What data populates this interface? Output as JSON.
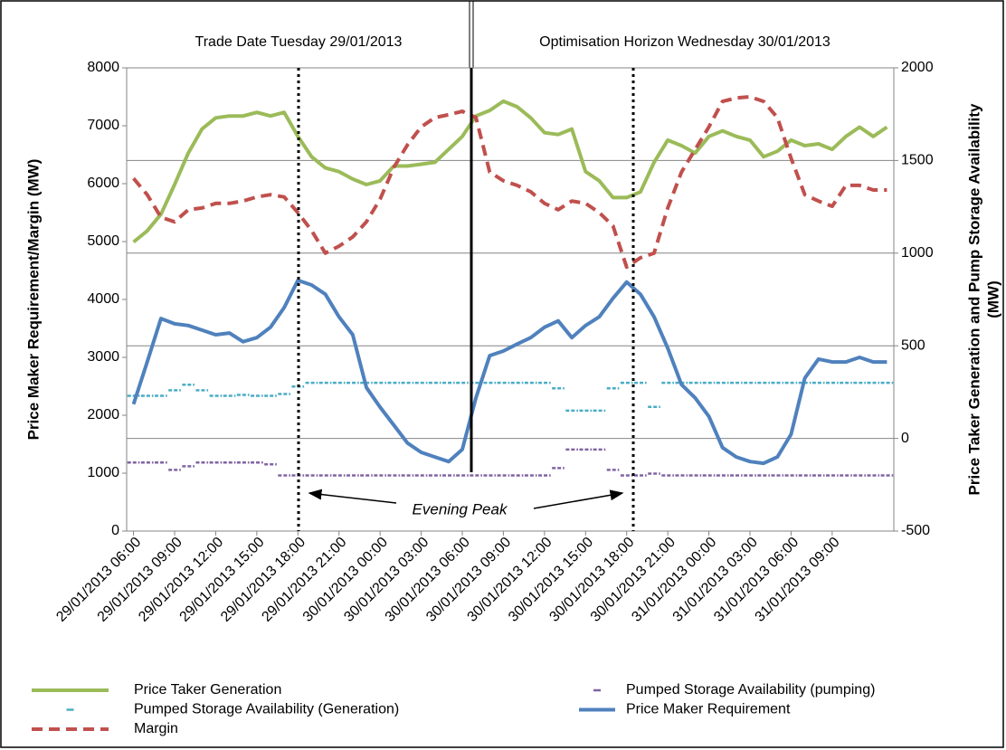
{
  "chart_data": {
    "type": "line",
    "annotations": [
      "Trade Date Tuesday 29/01/2013",
      "Optimisation Horizon Wednesday 30/01/2013",
      "Evening Peak"
    ],
    "ylabel": "Price Maker Requirement/Margin (MW)",
    "y2label": [
      "Price Taker Generation and Pump Storage Availability",
      "(MW)"
    ],
    "categories": [
      "29/01/2013 06:00",
      null,
      null,
      "29/01/2013 09:00",
      null,
      null,
      "29/01/2013 12:00",
      null,
      null,
      "29/01/2013 15:00",
      null,
      null,
      "29/01/2013 18:00",
      null,
      null,
      "29/01/2013 21:00",
      null,
      null,
      "30/01/2013 00:00",
      null,
      null,
      "30/01/2013 03:00",
      null,
      null,
      "30/01/2013 06:00",
      null,
      null,
      "30/01/2013 09:00",
      null,
      null,
      "30/01/2013 12:00",
      null,
      null,
      "30/01/2013 15:00",
      null,
      null,
      "30/01/2013 18:00",
      null,
      null,
      "30/01/2013 21:00",
      null,
      null,
      "31/01/2013 00:00",
      null,
      null,
      "31/01/2013 03:00",
      null,
      null,
      "31/01/2013 06:00",
      null,
      null,
      "31/01/2013 09:00",
      null,
      null,
      null,
      null
    ],
    "ylim": [
      0,
      8000
    ],
    "yticks": [
      0,
      1000,
      2000,
      3000,
      4000,
      5000,
      6000,
      7000,
      8000
    ],
    "y2lim": [
      -500,
      2000
    ],
    "y2ticks": [
      -500,
      0,
      500,
      1000,
      1500,
      2000
    ],
    "grid": true,
    "series": [
      {
        "name": "Price Taker Generation",
        "color": "#9bbb59",
        "axis": "y2",
        "style": "solid",
        "values": [
          1060,
          1120,
          1210,
          1370,
          1540,
          1670,
          1730,
          1740,
          1740,
          1760,
          1740,
          1760,
          1630,
          1520,
          1460,
          1440,
          1400,
          1370,
          1390,
          1470,
          1470,
          1480,
          1490,
          1560,
          1630,
          1740,
          1770,
          1820,
          1790,
          1730,
          1650,
          1640,
          1670,
          1440,
          1390,
          1300,
          1300,
          1330,
          1490,
          1610,
          1580,
          1540,
          1630,
          1660,
          1630,
          1610,
          1520,
          1550,
          1610,
          1580,
          1590,
          1560,
          1630,
          1680,
          1630,
          1680
        ]
      },
      {
        "name": "Pumped Storage Availability (pumping)",
        "color": "#8064a2",
        "axis": "y2",
        "style": "marks",
        "values": [
          -130,
          -130,
          -130,
          -170,
          -150,
          -130,
          -130,
          -130,
          -130,
          -130,
          -140,
          -200,
          -200,
          -200,
          -200,
          -200,
          -200,
          -200,
          -200,
          -200,
          -200,
          -200,
          -200,
          -200,
          -200,
          -200,
          -200,
          -200,
          -200,
          -200,
          -200,
          -160,
          -60,
          -60,
          -60,
          -170,
          -200,
          -200,
          -190,
          -200,
          -200,
          -200,
          -200,
          -200,
          -200,
          -200,
          -200,
          -200,
          -200,
          -200,
          -200,
          -200,
          -200,
          -200,
          -200,
          -200
        ]
      },
      {
        "name": "Pumped Storage Availability (Generation)",
        "color": "#4bacc6",
        "axis": "y2",
        "style": "marks",
        "values": [
          230,
          230,
          230,
          260,
          290,
          260,
          230,
          230,
          235,
          230,
          230,
          240,
          280,
          300,
          300,
          300,
          300,
          300,
          300,
          300,
          300,
          300,
          300,
          300,
          300,
          300,
          300,
          300,
          300,
          300,
          300,
          270,
          150,
          150,
          150,
          270,
          300,
          300,
          170,
          300,
          300,
          300,
          300,
          300,
          300,
          300,
          300,
          300,
          300,
          300,
          300,
          300,
          300,
          300,
          300,
          300
        ]
      },
      {
        "name": "Price Maker Requirement",
        "color": "#4f81bd",
        "axis": "y",
        "style": "solid",
        "values": [
          2190,
          2920,
          3670,
          3580,
          3550,
          3470,
          3390,
          3420,
          3270,
          3340,
          3520,
          3860,
          4330,
          4250,
          4090,
          3700,
          3390,
          2480,
          2140,
          1830,
          1520,
          1360,
          1280,
          1200,
          1410,
          2300,
          3030,
          3110,
          3230,
          3340,
          3520,
          3630,
          3340,
          3550,
          3700,
          4020,
          4300,
          4090,
          3700,
          3160,
          2530,
          2300,
          1980,
          1440,
          1280,
          1200,
          1170,
          1280,
          1670,
          2640,
          2970,
          2920,
          2920,
          3000,
          2920,
          2920
        ]
      },
      {
        "name": "Margin",
        "color": "#c0504d",
        "axis": "y",
        "style": "dashed",
        "values": [
          6090,
          5810,
          5420,
          5340,
          5550,
          5580,
          5660,
          5660,
          5700,
          5770,
          5810,
          5770,
          5500,
          5190,
          4800,
          4920,
          5080,
          5340,
          5730,
          6280,
          6670,
          6980,
          7140,
          7190,
          7250,
          7140,
          6200,
          6050,
          5970,
          5860,
          5660,
          5550,
          5700,
          5660,
          5500,
          5270,
          4560,
          4720,
          4800,
          5580,
          6200,
          6590,
          6980,
          7420,
          7480,
          7500,
          7420,
          7140,
          6440,
          5810,
          5700,
          5610,
          5970,
          5970,
          5890,
          5890
        ]
      }
    ]
  }
}
